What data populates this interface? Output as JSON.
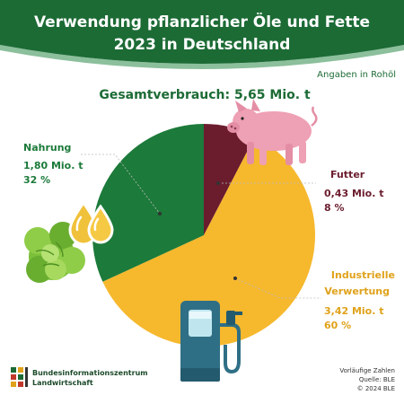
{
  "header": {
    "title_line1": "Verwendung pflanzlicher Öle und Fette",
    "title_line2": "2023 in Deutschland"
  },
  "unit_note": "Angaben in Rohöl",
  "total": "Gesamtverbrauch: 5,65 Mio. t",
  "chart_data": {
    "type": "pie",
    "title": "Verwendung pflanzlicher Öle und Fette 2023 in Deutschland",
    "subtitle": "Gesamtverbrauch: 5,65 Mio. t",
    "unit": "Angaben in Rohöl",
    "slices": [
      {
        "label": "Futter",
        "value_text": "0,43 Mio. t",
        "pct_text": "8 %",
        "value": 0.43,
        "percent": 8,
        "color": "#6b1d2e"
      },
      {
        "label": "Industrielle Verwertung",
        "label_lines": [
          "Industrielle",
          "Verwertung"
        ],
        "value_text": "3,42 Mio. t",
        "pct_text": "60 %",
        "value": 3.42,
        "percent": 60,
        "color": "#f6b82d"
      },
      {
        "label": "Nahrung",
        "value_text": "1,80 Mio. t",
        "pct_text": "32 %",
        "value": 1.8,
        "percent": 32,
        "color": "#1c7a3a"
      }
    ]
  },
  "footer": {
    "org_line1": "Bundesinformationszentrum",
    "org_line2": "Landwirtschaft",
    "note1": "Vorläufige Zahlen",
    "note2": "Quelle: BLE",
    "note3": "© 2024 BLE"
  },
  "icons": {
    "pig": "pig-icon",
    "oil": "oil-drops-icon",
    "lettuce": "lettuce-icon",
    "pump": "fuel-pump-icon",
    "logo": "ble-logo-icon"
  },
  "colors": {
    "header_green": "#1c6b35",
    "nahrung": "#1c7a3a",
    "futter": "#6b1d2e",
    "industrie": "#f6b82d",
    "label_nahrung": "#1c7a3a",
    "label_futter": "#6b1d2e",
    "label_industrie": "#e0a21a"
  }
}
